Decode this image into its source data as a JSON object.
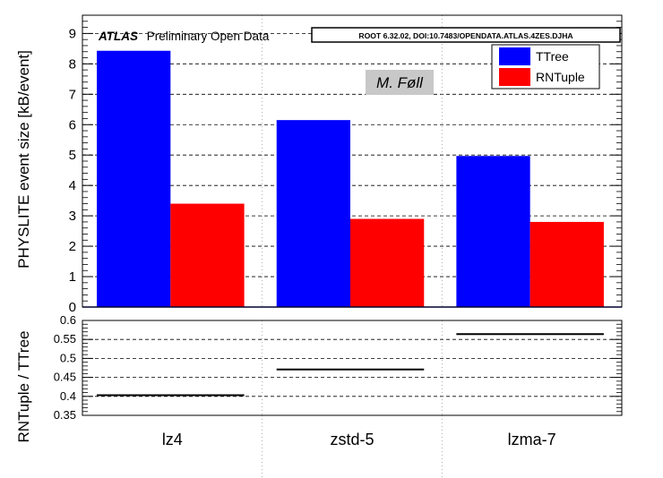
{
  "chart_data": [
    {
      "type": "bar",
      "categories": [
        "lz4",
        "zstd-5",
        "lzma-7"
      ],
      "series": [
        {
          "name": "TTree",
          "values": [
            8.43,
            6.15,
            4.97
          ],
          "color": "#0000ff"
        },
        {
          "name": "RNTuple",
          "values": [
            3.4,
            2.9,
            2.8
          ],
          "color": "#ff0000"
        }
      ],
      "ylabel": "PHYSLITE event size [kB/event]",
      "ylim": [
        0,
        9.6
      ],
      "yticks": [
        0,
        1,
        2,
        3,
        4,
        5,
        6,
        7,
        8,
        9
      ],
      "grid": true,
      "legend_position": "top-right",
      "annotations": {
        "experiment": "ATLAS",
        "status": "Preliminary Open Data",
        "software": "ROOT 6.32.02, DOI:10.7483/OPENDATA.ATLAS.4ZES.DJHA",
        "author": "M. Føll"
      }
    },
    {
      "type": "line",
      "categories": [
        "lz4",
        "zstd-5",
        "lzma-7"
      ],
      "values": [
        0.403,
        0.471,
        0.564
      ],
      "ylabel": "RNTuple / TTree",
      "ylim": [
        0.35,
        0.6
      ],
      "yticks": [
        "0.35",
        "0.4",
        "0.45",
        "0.5",
        "0.55",
        "0.6"
      ],
      "grid": true
    }
  ]
}
